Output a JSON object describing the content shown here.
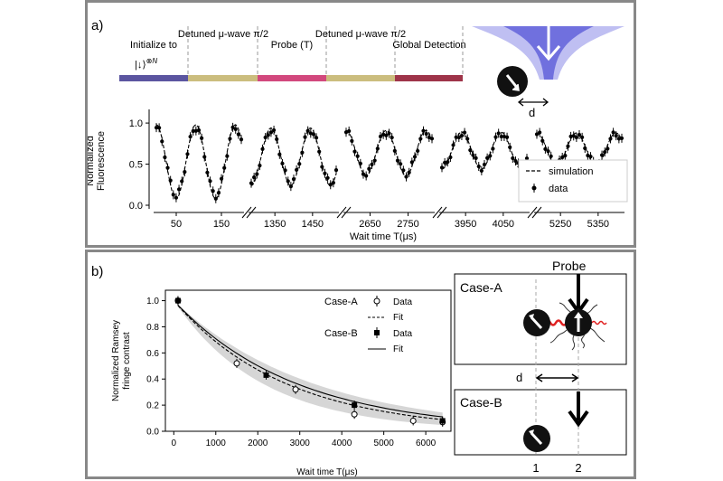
{
  "panel_a": {
    "label": "a)",
    "sequence": [
      {
        "label": "Initialize to",
        "color": "#5b55a0"
      },
      {
        "label": "Detuned μ-wave π/2",
        "color": "#cbbd7e"
      },
      {
        "label": "Probe (T)",
        "color": "#d2487d"
      },
      {
        "label": "Detuned μ-wave π/2",
        "color": "#cbbd7e"
      },
      {
        "label": "Global Detection",
        "color": "#9e3449"
      }
    ],
    "init_state": "|↓⟩",
    "init_state_exp": "⊗N",
    "probe_label": "probe",
    "d_label": "d"
  },
  "panel_b": {
    "label": "b)",
    "probe_label": "Probe",
    "case_a": "Case-A",
    "case_b": "Case-B",
    "d_label": "d",
    "pos1": "1",
    "pos2": "2"
  },
  "chart_data": [
    {
      "type": "line",
      "ylabel": "Normalized Fluorescence",
      "xlabel": "Wait time T(μs)",
      "ylim": [
        0,
        1.1
      ],
      "yticks": [
        0.0,
        0.5,
        1.0
      ],
      "legend": [
        "simulation",
        "data"
      ],
      "legend_position": "bottom-right",
      "segments": [
        {
          "xticks": [
            50,
            150
          ],
          "xrange": [
            0,
            200
          ]
        },
        {
          "xticks": [
            1350,
            1450
          ],
          "xrange": [
            1280,
            1520
          ]
        },
        {
          "xticks": [
            2650,
            2750
          ],
          "xrange": [
            2580,
            2820
          ]
        },
        {
          "xticks": [
            3950,
            4050
          ],
          "xrange": [
            3880,
            4120
          ]
        },
        {
          "xticks": [
            5250,
            5350
          ],
          "xrange": [
            5180,
            5420
          ]
        }
      ]
    },
    {
      "type": "scatter",
      "ylabel": "Normalized Ramsey fringe contrast",
      "xlabel": "Wait time T(μs)",
      "xlim": [
        -200,
        6600
      ],
      "ylim": [
        0,
        1.08
      ],
      "xticks": [
        0,
        1000,
        2000,
        3000,
        4000,
        5000,
        6000
      ],
      "yticks": [
        0.0,
        0.2,
        0.4,
        0.6,
        0.8,
        1.0
      ],
      "series": [
        {
          "name": "Case-A",
          "marker": "open",
          "fit_style": "dashed",
          "x": [
            100,
            1500,
            2900,
            4300,
            5700,
            6400
          ],
          "y": [
            1.0,
            0.52,
            0.32,
            0.13,
            0.08,
            0.07
          ]
        },
        {
          "name": "Case-B",
          "marker": "filled",
          "fit_style": "solid",
          "x": [
            100,
            2200,
            4300,
            6400
          ],
          "y": [
            1.0,
            0.43,
            0.2,
            0.08
          ]
        }
      ],
      "legend_labels": {
        "data": "Data",
        "fit": "Fit"
      }
    }
  ]
}
